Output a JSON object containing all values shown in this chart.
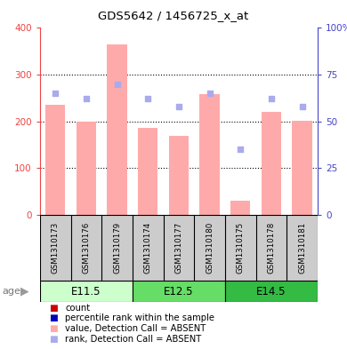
{
  "title": "GDS5642 / 1456725_x_at",
  "samples": [
    "GSM1310173",
    "GSM1310176",
    "GSM1310179",
    "GSM1310174",
    "GSM1310177",
    "GSM1310180",
    "GSM1310175",
    "GSM1310178",
    "GSM1310181"
  ],
  "age_groups": [
    {
      "label": "E11.5",
      "start": 0,
      "end": 3
    },
    {
      "label": "E12.5",
      "start": 3,
      "end": 6
    },
    {
      "label": "E14.5",
      "start": 6,
      "end": 9
    }
  ],
  "age_colors": [
    "#ccffcc",
    "#66dd66",
    "#33bb44"
  ],
  "bar_values": [
    235,
    200,
    365,
    185,
    168,
    258,
    30,
    220,
    202
  ],
  "bar_color": "#ffaaaa",
  "rank_squares_pct": [
    65,
    62,
    70,
    62,
    58,
    65,
    35,
    62,
    58
  ],
  "rank_color": "#aaaaee",
  "ylim_left": [
    0,
    400
  ],
  "ylim_right": [
    0,
    100
  ],
  "yticks_left": [
    0,
    100,
    200,
    300,
    400
  ],
  "yticks_right": [
    0,
    25,
    50,
    75,
    100
  ],
  "left_axis_color": "#ee4444",
  "right_axis_color": "#4444cc",
  "sample_box_color": "#cccccc",
  "grid_yticks": [
    100,
    200,
    300
  ],
  "legend_items": [
    {
      "color": "#cc0000",
      "label": "count"
    },
    {
      "color": "#0000bb",
      "label": "percentile rank within the sample"
    },
    {
      "color": "#ffaaaa",
      "label": "value, Detection Call = ABSENT"
    },
    {
      "color": "#aaaaee",
      "label": "rank, Detection Call = ABSENT"
    }
  ]
}
